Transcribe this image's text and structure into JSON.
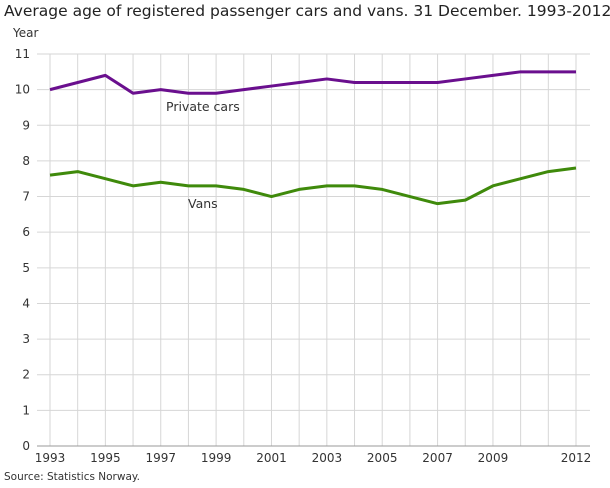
{
  "chart_data": {
    "type": "line",
    "title": "Average age of registered passenger cars and vans. 31 December. 1993-2012",
    "ylabel": "Year",
    "xlabel": "",
    "source": "Source: Statistics Norway.",
    "x": [
      1993,
      1994,
      1995,
      1996,
      1997,
      1998,
      1999,
      2000,
      2001,
      2002,
      2003,
      2004,
      2005,
      2006,
      2007,
      2008,
      2009,
      2010,
      2011,
      2012
    ],
    "xtick_labels": [
      "1993",
      "1995",
      "1997",
      "1999",
      "2001",
      "2003",
      "2005",
      "2007",
      "2009",
      "2012"
    ],
    "ylim": [
      0,
      11
    ],
    "yticks": [
      0,
      1,
      2,
      3,
      4,
      5,
      6,
      7,
      8,
      9,
      10,
      11
    ],
    "grid": true,
    "series": [
      {
        "name": "Private cars",
        "color": "#6a0f8e",
        "values": [
          10.0,
          10.2,
          10.4,
          9.9,
          10.0,
          9.9,
          9.9,
          10.0,
          10.1,
          10.2,
          10.3,
          10.2,
          10.2,
          10.2,
          10.2,
          10.3,
          10.4,
          10.5,
          10.5,
          10.5
        ]
      },
      {
        "name": "Vans",
        "color": "#3f8a0b",
        "values": [
          7.6,
          7.7,
          7.5,
          7.3,
          7.4,
          7.3,
          7.3,
          7.2,
          7.0,
          7.2,
          7.3,
          7.3,
          7.2,
          7.0,
          6.8,
          6.9,
          7.3,
          7.5,
          7.7,
          7.8
        ]
      }
    ]
  }
}
